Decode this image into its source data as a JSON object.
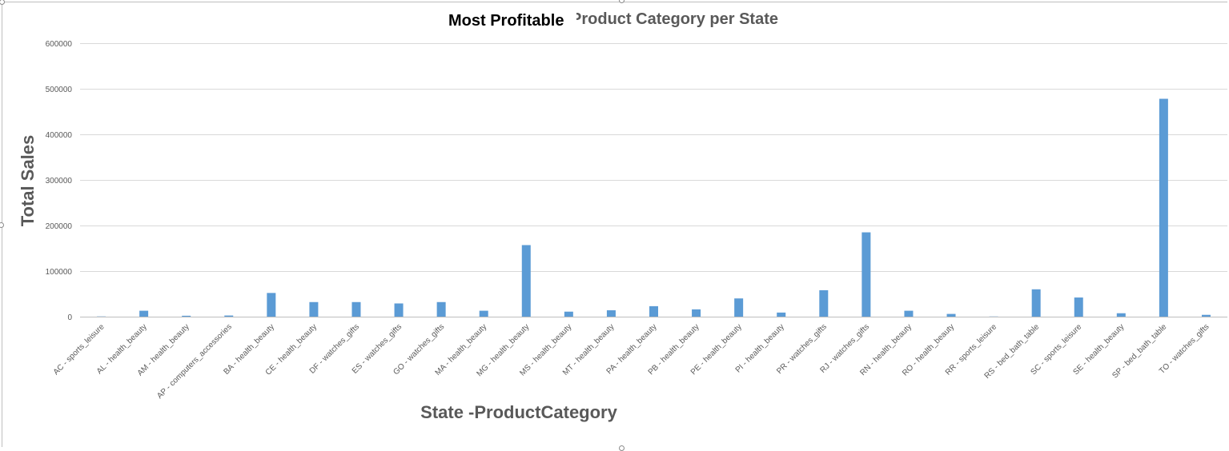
{
  "chart_data": {
    "type": "bar",
    "title": "Most Profitable Product Category per State",
    "title_overlay": "Most Profitable",
    "xlabel": "State -ProductCategory",
    "ylabel": "Total Sales",
    "ylim": [
      0,
      600000
    ],
    "yticks": [
      0,
      100000,
      200000,
      300000,
      400000,
      500000,
      600000
    ],
    "grid": true,
    "legend": "none",
    "bar_color": "#5b9bd5",
    "categories": [
      "AC - sports_leisure",
      "AL - health_beauty",
      "AM - health_beauty",
      "AP - computers_accessories",
      "BA - health_beauty",
      "CE - health_beauty",
      "DF - watches_gifts",
      "ES - watches_gifts",
      "GO - watches_gifts",
      "MA - health_beauty",
      "MG - health_beauty",
      "MS - health_beauty",
      "MT - health_beauty",
      "PA - health_beauty",
      "PB - health_beauty",
      "PE - health_beauty",
      "PI - health_beauty",
      "PR - watches_gifts",
      "RJ - watches_gifts",
      "RN - health_beauty",
      "RO - health_beauty",
      "RR - sports_leisure",
      "RS - bed_bath_table",
      "SC - sports_leisure",
      "SE - health_beauty",
      "SP - bed_bath_table",
      "TO - watches_gifts"
    ],
    "values": [
      500,
      13000,
      2000,
      2500,
      52000,
      32000,
      32000,
      29000,
      32000,
      13000,
      157000,
      11000,
      14000,
      23000,
      16000,
      40000,
      9000,
      58000,
      185000,
      13000,
      6000,
      400,
      60000,
      42000,
      7500,
      478000,
      4000
    ]
  }
}
